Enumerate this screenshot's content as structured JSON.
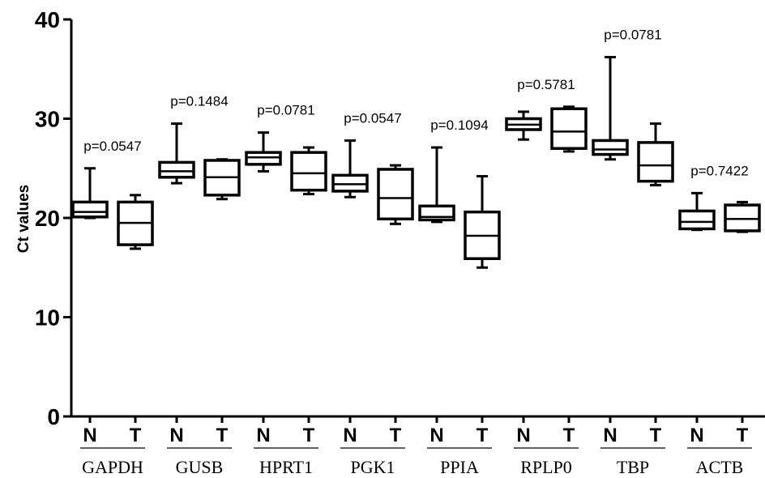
{
  "chart_data": {
    "type": "boxplot",
    "ylabel": "Ct values",
    "ylim": [
      0,
      40
    ],
    "yticks": [
      "0",
      "10",
      "20",
      "30",
      "40"
    ],
    "group_labels": [
      "N",
      "T"
    ],
    "genes": [
      {
        "name": "GAPDH",
        "p": "p=0.0547",
        "N": {
          "min": 20.0,
          "q1": 20.1,
          "median": 20.6,
          "q3": 21.6,
          "max": 25.0
        },
        "T": {
          "min": 16.9,
          "q1": 17.3,
          "median": 19.5,
          "q3": 21.6,
          "max": 22.3
        }
      },
      {
        "name": "GUSB",
        "p": "p=0.1484",
        "N": {
          "min": 23.5,
          "q1": 24.1,
          "median": 24.7,
          "q3": 25.6,
          "max": 29.5
        },
        "T": {
          "min": 21.9,
          "q1": 22.3,
          "median": 24.1,
          "q3": 25.8,
          "max": 25.9
        }
      },
      {
        "name": "HPRT1",
        "p": "p=0.0781",
        "N": {
          "min": 24.7,
          "q1": 25.4,
          "median": 26.1,
          "q3": 26.6,
          "max": 28.6
        },
        "T": {
          "min": 22.4,
          "q1": 22.8,
          "median": 24.5,
          "q3": 26.6,
          "max": 27.1
        }
      },
      {
        "name": "PGK1",
        "p": "p=0.0547",
        "N": {
          "min": 22.1,
          "q1": 22.7,
          "median": 23.4,
          "q3": 24.3,
          "max": 27.8
        },
        "T": {
          "min": 19.4,
          "q1": 19.9,
          "median": 22.0,
          "q3": 24.9,
          "max": 25.3
        }
      },
      {
        "name": "PPIA",
        "p": "p=0.1094",
        "N": {
          "min": 19.6,
          "q1": 19.8,
          "median": 20.1,
          "q3": 21.2,
          "max": 27.1
        },
        "T": {
          "min": 15.0,
          "q1": 15.9,
          "median": 18.2,
          "q3": 20.6,
          "max": 24.2
        }
      },
      {
        "name": "RPLP0",
        "p": "p=0.5781",
        "N": {
          "min": 27.9,
          "q1": 28.9,
          "median": 29.4,
          "q3": 30.0,
          "max": 30.7
        },
        "T": {
          "min": 26.7,
          "q1": 27.0,
          "median": 28.7,
          "q3": 31.0,
          "max": 31.2
        }
      },
      {
        "name": "TBP",
        "p": "p=0.0781",
        "N": {
          "min": 25.9,
          "q1": 26.4,
          "median": 26.9,
          "q3": 27.8,
          "max": 36.2
        },
        "T": {
          "min": 23.3,
          "q1": 23.7,
          "median": 25.3,
          "q3": 27.6,
          "max": 29.5
        }
      },
      {
        "name": "ACTB",
        "p": "p=0.7422",
        "N": {
          "min": 18.8,
          "q1": 18.9,
          "median": 19.6,
          "q3": 20.7,
          "max": 22.5
        },
        "T": {
          "min": 18.6,
          "q1": 18.7,
          "median": 19.9,
          "q3": 21.3,
          "max": 21.6
        }
      }
    ]
  }
}
